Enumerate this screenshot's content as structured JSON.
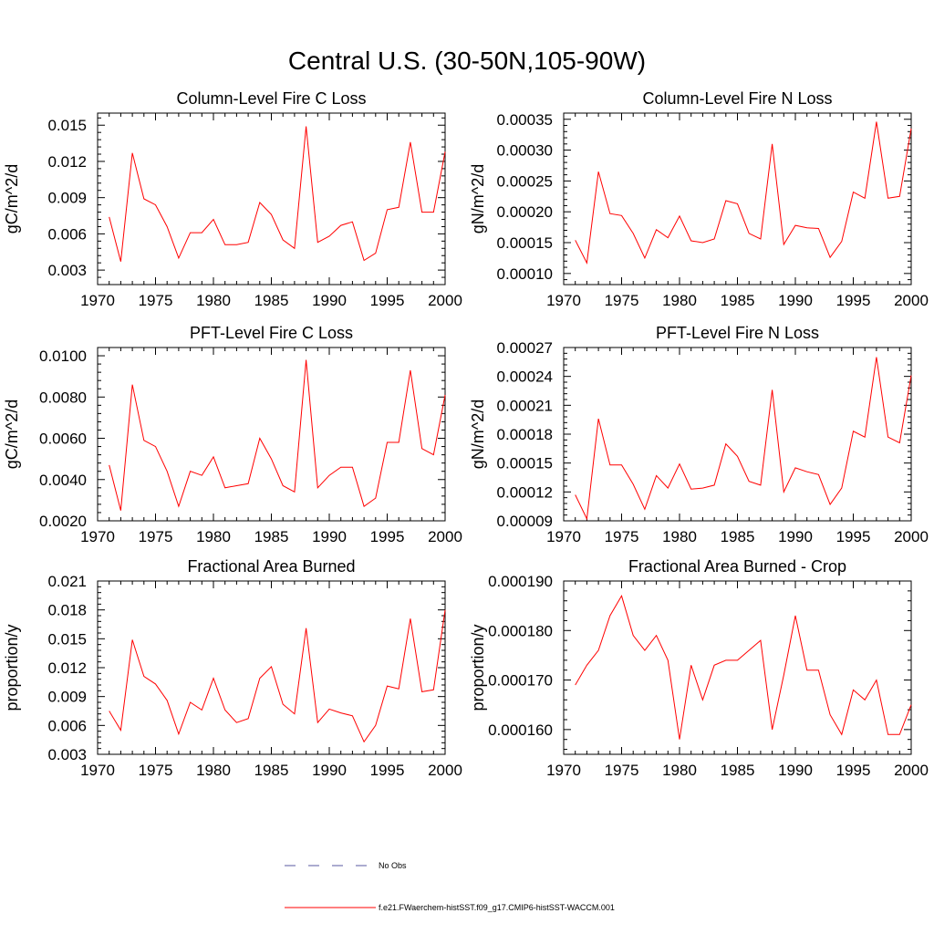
{
  "figure": {
    "title": "Central U.S. (30-50N,105-90W)"
  },
  "legend": {
    "items": [
      {
        "label": "No Obs",
        "color": "#5a5aa0",
        "dash": "12,14"
      },
      {
        "label": "f.e21.FWaerchem-histSST.f09_g17.CMIP6-histSST-WACCM.001",
        "color": "#ff0000",
        "dash": ""
      }
    ]
  },
  "chart_data": [
    {
      "type": "line",
      "title": "Column-Level Fire C Loss",
      "xlabel": "",
      "ylabel": "gC/m^2/d",
      "xlim": [
        1970,
        2000
      ],
      "ylim": [
        0.0018,
        0.016
      ],
      "xticks": [
        1970,
        1975,
        1980,
        1985,
        1990,
        1995,
        2000
      ],
      "yticks": [
        0.003,
        0.006,
        0.009,
        0.012,
        0.015
      ],
      "ytick_labels": [
        "0.003",
        "0.006",
        "0.009",
        "0.012",
        "0.015"
      ],
      "series": [
        {
          "color": "#ff0000",
          "x": [
            1971,
            1972,
            1973,
            1974,
            1975,
            1976,
            1977,
            1978,
            1979,
            1980,
            1981,
            1982,
            1983,
            1984,
            1985,
            1986,
            1987,
            1988,
            1989,
            1990,
            1991,
            1992,
            1993,
            1994,
            1995,
            1996,
            1997,
            1998,
            1999,
            2000
          ],
          "values": [
            0.0074,
            0.0037,
            0.0127,
            0.0089,
            0.0084,
            0.0066,
            0.004,
            0.0061,
            0.0061,
            0.0072,
            0.0051,
            0.0051,
            0.0053,
            0.0086,
            0.0076,
            0.0055,
            0.0048,
            0.0149,
            0.0053,
            0.0058,
            0.0067,
            0.007,
            0.0038,
            0.0044,
            0.008,
            0.0082,
            0.0136,
            0.0078,
            0.0078,
            0.0128
          ]
        }
      ]
    },
    {
      "type": "line",
      "title": "Column-Level Fire N Loss",
      "xlabel": "",
      "ylabel": "gN/m^2/d",
      "xlim": [
        1970,
        2000
      ],
      "ylim": [
        8.2e-05,
        0.00036
      ],
      "xticks": [
        1970,
        1975,
        1980,
        1985,
        1990,
        1995,
        2000
      ],
      "yticks": [
        0.0001,
        0.00015,
        0.0002,
        0.00025,
        0.0003,
        0.00035
      ],
      "ytick_labels": [
        "0.00010",
        "0.00015",
        "0.00020",
        "0.00025",
        "0.00030",
        "0.00035"
      ],
      "series": [
        {
          "color": "#ff0000",
          "x": [
            1971,
            1972,
            1973,
            1974,
            1975,
            1976,
            1977,
            1978,
            1979,
            1980,
            1981,
            1982,
            1983,
            1984,
            1985,
            1986,
            1987,
            1988,
            1989,
            1990,
            1991,
            1992,
            1993,
            1994,
            1995,
            1996,
            1997,
            1998,
            1999,
            2000
          ],
          "values": [
            0.000154,
            0.000117,
            0.000265,
            0.000197,
            0.000194,
            0.000165,
            0.000125,
            0.000171,
            0.000158,
            0.000193,
            0.000153,
            0.00015,
            0.000156,
            0.000218,
            0.000213,
            0.000165,
            0.000156,
            0.00031,
            0.000147,
            0.000178,
            0.000174,
            0.000173,
            0.000126,
            0.000152,
            0.000232,
            0.000222,
            0.000346,
            0.000222,
            0.000225,
            0.000335
          ]
        }
      ]
    },
    {
      "type": "line",
      "title": "PFT-Level Fire C Loss",
      "xlabel": "",
      "ylabel": "gC/m^2/d",
      "xlim": [
        1970,
        2000
      ],
      "ylim": [
        0.002,
        0.0104
      ],
      "xticks": [
        1970,
        1975,
        1980,
        1985,
        1990,
        1995,
        2000
      ],
      "yticks": [
        0.002,
        0.004,
        0.006,
        0.008,
        0.01
      ],
      "ytick_labels": [
        "0.0020",
        "0.0040",
        "0.0060",
        "0.0080",
        "0.0100"
      ],
      "series": [
        {
          "color": "#ff0000",
          "x": [
            1971,
            1972,
            1973,
            1974,
            1975,
            1976,
            1977,
            1978,
            1979,
            1980,
            1981,
            1982,
            1983,
            1984,
            1985,
            1986,
            1987,
            1988,
            1989,
            1990,
            1991,
            1992,
            1993,
            1994,
            1995,
            1996,
            1997,
            1998,
            1999,
            2000
          ],
          "values": [
            0.0047,
            0.0025,
            0.0086,
            0.0059,
            0.0056,
            0.0044,
            0.0027,
            0.0044,
            0.0042,
            0.0051,
            0.0036,
            0.0037,
            0.0038,
            0.006,
            0.005,
            0.0037,
            0.0034,
            0.0098,
            0.0036,
            0.0042,
            0.0046,
            0.0046,
            0.0027,
            0.0031,
            0.0058,
            0.0058,
            0.0093,
            0.0055,
            0.0052,
            0.0081
          ]
        }
      ]
    },
    {
      "type": "line",
      "title": "PFT-Level Fire N Loss",
      "xlabel": "",
      "ylabel": "gN/m^2/d",
      "xlim": [
        1970,
        2000
      ],
      "ylim": [
        9e-05,
        0.00027
      ],
      "xticks": [
        1970,
        1975,
        1980,
        1985,
        1990,
        1995,
        2000
      ],
      "yticks": [
        9e-05,
        0.00012,
        0.00015,
        0.00018,
        0.00021,
        0.00024,
        0.00027
      ],
      "ytick_labels": [
        "0.00009",
        "0.00012",
        "0.00015",
        "0.00018",
        "0.00021",
        "0.00024",
        "0.00027"
      ],
      "series": [
        {
          "color": "#ff0000",
          "x": [
            1971,
            1972,
            1973,
            1974,
            1975,
            1976,
            1977,
            1978,
            1979,
            1980,
            1981,
            1982,
            1983,
            1984,
            1985,
            1986,
            1987,
            1988,
            1989,
            1990,
            1991,
            1992,
            1993,
            1994,
            1995,
            1996,
            1997,
            1998,
            1999,
            2000
          ],
          "values": [
            0.000117,
            9.2e-05,
            0.000196,
            0.000148,
            0.000148,
            0.000128,
            0.000102,
            0.000137,
            0.000124,
            0.000149,
            0.000123,
            0.000124,
            0.000127,
            0.00017,
            0.000157,
            0.000131,
            0.000127,
            0.000226,
            0.00012,
            0.000145,
            0.000141,
            0.000138,
            0.000107,
            0.000124,
            0.000183,
            0.000177,
            0.00026,
            0.000177,
            0.000171,
            0.000241
          ]
        }
      ]
    },
    {
      "type": "line",
      "title": "Fractional Area Burned",
      "xlabel": "",
      "ylabel": "proportion/y",
      "xlim": [
        1970,
        2000
      ],
      "ylim": [
        0.003,
        0.021
      ],
      "xticks": [
        1970,
        1975,
        1980,
        1985,
        1990,
        1995,
        2000
      ],
      "yticks": [
        0.003,
        0.006,
        0.009,
        0.012,
        0.015,
        0.018,
        0.021
      ],
      "ytick_labels": [
        "0.003",
        "0.006",
        "0.009",
        "0.012",
        "0.015",
        "0.018",
        "0.021"
      ],
      "series": [
        {
          "color": "#ff0000",
          "x": [
            1971,
            1972,
            1973,
            1974,
            1975,
            1976,
            1977,
            1978,
            1979,
            1980,
            1981,
            1982,
            1983,
            1984,
            1985,
            1986,
            1987,
            1988,
            1989,
            1990,
            1991,
            1992,
            1993,
            1994,
            1995,
            1996,
            1997,
            1998,
            1999,
            2000
          ],
          "values": [
            0.0075,
            0.0055,
            0.0149,
            0.0111,
            0.0103,
            0.0086,
            0.0051,
            0.0084,
            0.0076,
            0.0109,
            0.0076,
            0.0063,
            0.0067,
            0.0109,
            0.0121,
            0.0082,
            0.0072,
            0.0161,
            0.0063,
            0.0077,
            0.0073,
            0.007,
            0.0043,
            0.006,
            0.0101,
            0.0098,
            0.0171,
            0.0095,
            0.0097,
            0.018
          ]
        }
      ]
    },
    {
      "type": "line",
      "title": "Fractional Area Burned - Crop",
      "xlabel": "",
      "ylabel": "proportion/y",
      "xlim": [
        1970,
        2000
      ],
      "ylim": [
        0.000155,
        0.00019
      ],
      "xticks": [
        1970,
        1975,
        1980,
        1985,
        1990,
        1995,
        2000
      ],
      "yticks": [
        0.00016,
        0.00017,
        0.00018,
        0.00019
      ],
      "ytick_labels": [
        "0.000160",
        "0.000170",
        "0.000180",
        "0.000190"
      ],
      "series": [
        {
          "color": "#ff0000",
          "x": [
            1971,
            1972,
            1973,
            1974,
            1975,
            1976,
            1977,
            1978,
            1979,
            1980,
            1981,
            1982,
            1983,
            1984,
            1985,
            1986,
            1987,
            1988,
            1989,
            1990,
            1991,
            1992,
            1993,
            1994,
            1995,
            1996,
            1997,
            1998,
            1999,
            2000
          ],
          "values": [
            0.000169,
            0.000173,
            0.000176,
            0.000183,
            0.000187,
            0.000179,
            0.000176,
            0.000179,
            0.000174,
            0.000158,
            0.000173,
            0.000166,
            0.000173,
            0.000174,
            0.000174,
            0.000176,
            0.000178,
            0.00016,
            0.000171,
            0.000183,
            0.000172,
            0.000172,
            0.000163,
            0.000159,
            0.000168,
            0.000166,
            0.00017,
            0.000159,
            0.000159,
            0.000165
          ]
        }
      ]
    }
  ]
}
